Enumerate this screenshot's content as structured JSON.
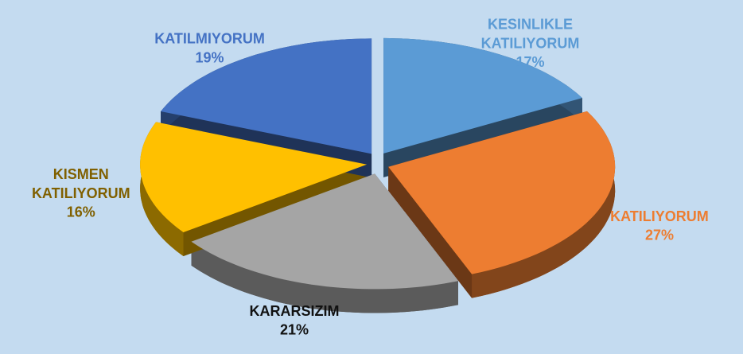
{
  "chart_data": {
    "type": "pie",
    "categories": [
      "KESINLIKLE KATILIYORUM",
      "KATILIYORUM",
      "KARARSIZIM",
      "KISMEN KATILIYORUM",
      "KATILMIYORUM"
    ],
    "values": [
      17,
      27,
      21,
      16,
      19
    ],
    "value_labels": [
      "17%",
      "27%",
      "21%",
      "16%",
      "19%"
    ],
    "colors": [
      "#5b9bd5",
      "#ed7d31",
      "#a5a5a5",
      "#ffc000",
      "#4472c4"
    ],
    "label_colors": [
      "#5b9bd5",
      "#ed7d31",
      "#111111",
      "#806000",
      "#4472c4"
    ]
  }
}
